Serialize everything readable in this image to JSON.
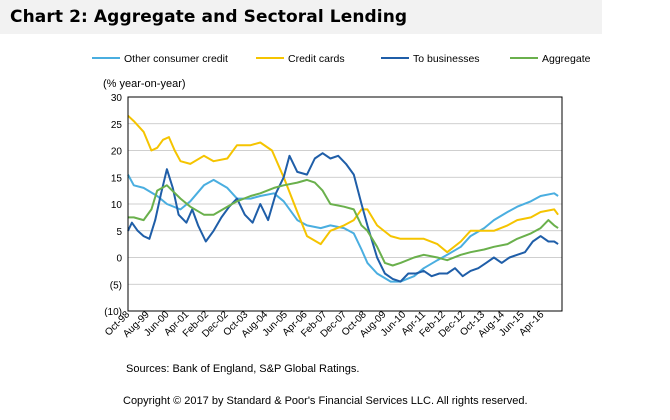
{
  "header": {
    "title": "Chart 2: Aggregate and Sectoral Lending"
  },
  "chart_data": {
    "type": "line",
    "title": "Chart 2: Aggregate and Sectoral Lending",
    "ylabel": "(% year-on-year)",
    "xlabel": "",
    "ylim": [
      -10,
      30
    ],
    "ytick_values": [
      -10,
      -5,
      0,
      5,
      10,
      15,
      20,
      25,
      30
    ],
    "ytick_labels": [
      "(10)",
      "(5)",
      "0",
      "5",
      "10",
      "15",
      "20",
      "25",
      "30"
    ],
    "xlim": [
      "1998-10",
      "2017-05"
    ],
    "xticks": [
      "Oct-98",
      "Aug-99",
      "Jun-00",
      "Apr-01",
      "Feb-02",
      "Dec-02",
      "Oct-03",
      "Aug-04",
      "Jun-05",
      "Apr-06",
      "Feb-07",
      "Dec-07",
      "Oct-08",
      "Aug-09",
      "Jun-10",
      "Apr-11",
      "Feb-12",
      "Dec-12",
      "Oct-13",
      "Aug-14",
      "Jun-15",
      "Apr-16"
    ],
    "grid": "horizontal",
    "legend_position": "top",
    "series": [
      {
        "name": "Other consumer credit",
        "color": "#4aaee0",
        "points": [
          [
            "1998-10",
            15.5
          ],
          [
            "1999-01",
            13.5
          ],
          [
            "1999-06",
            13.0
          ],
          [
            "2000-01",
            11.5
          ],
          [
            "2000-06",
            10.0
          ],
          [
            "2001-01",
            9.0
          ],
          [
            "2001-06",
            10.5
          ],
          [
            "2002-01",
            13.5
          ],
          [
            "2002-06",
            14.5
          ],
          [
            "2003-01",
            13.0
          ],
          [
            "2003-06",
            11.0
          ],
          [
            "2004-01",
            11.0
          ],
          [
            "2004-06",
            11.5
          ],
          [
            "2005-01",
            12.0
          ],
          [
            "2005-06",
            10.5
          ],
          [
            "2006-01",
            7.0
          ],
          [
            "2006-06",
            6.0
          ],
          [
            "2007-01",
            5.5
          ],
          [
            "2007-06",
            6.0
          ],
          [
            "2008-01",
            5.5
          ],
          [
            "2008-06",
            4.5
          ],
          [
            "2008-10",
            1.5
          ],
          [
            "2009-01",
            -1.0
          ],
          [
            "2009-06",
            -3.0
          ],
          [
            "2010-01",
            -4.5
          ],
          [
            "2010-06",
            -4.5
          ],
          [
            "2011-01",
            -3.5
          ],
          [
            "2011-06",
            -2.0
          ],
          [
            "2012-01",
            -0.5
          ],
          [
            "2012-06",
            0.5
          ],
          [
            "2013-01",
            2.0
          ],
          [
            "2013-06",
            4.0
          ],
          [
            "2014-01",
            5.5
          ],
          [
            "2014-06",
            7.0
          ],
          [
            "2015-01",
            8.5
          ],
          [
            "2015-06",
            9.5
          ],
          [
            "2016-01",
            10.5
          ],
          [
            "2016-06",
            11.5
          ],
          [
            "2017-01",
            12.0
          ],
          [
            "2017-03",
            11.5
          ]
        ]
      },
      {
        "name": "Credit cards",
        "color": "#f5c400",
        "points": [
          [
            "1998-10",
            26.5
          ],
          [
            "1999-01",
            25.5
          ],
          [
            "1999-06",
            23.5
          ],
          [
            "1999-10",
            20.0
          ],
          [
            "2000-01",
            20.5
          ],
          [
            "2000-04",
            22.0
          ],
          [
            "2000-07",
            22.5
          ],
          [
            "2000-10",
            20.0
          ],
          [
            "2001-01",
            18.0
          ],
          [
            "2001-06",
            17.5
          ],
          [
            "2002-01",
            19.0
          ],
          [
            "2002-06",
            18.0
          ],
          [
            "2003-01",
            18.5
          ],
          [
            "2003-06",
            21.0
          ],
          [
            "2004-01",
            21.0
          ],
          [
            "2004-06",
            21.5
          ],
          [
            "2004-12",
            20.0
          ],
          [
            "2005-06",
            15.0
          ],
          [
            "2006-01",
            8.5
          ],
          [
            "2006-06",
            4.0
          ],
          [
            "2007-01",
            2.5
          ],
          [
            "2007-06",
            5.0
          ],
          [
            "2008-01",
            6.0
          ],
          [
            "2008-06",
            7.0
          ],
          [
            "2008-10",
            9.0
          ],
          [
            "2009-01",
            9.0
          ],
          [
            "2009-06",
            6.0
          ],
          [
            "2010-01",
            4.0
          ],
          [
            "2010-06",
            3.5
          ],
          [
            "2011-01",
            3.5
          ],
          [
            "2011-06",
            3.5
          ],
          [
            "2012-01",
            2.5
          ],
          [
            "2012-06",
            1.0
          ],
          [
            "2013-01",
            3.0
          ],
          [
            "2013-06",
            5.0
          ],
          [
            "2014-01",
            5.0
          ],
          [
            "2014-06",
            5.0
          ],
          [
            "2015-01",
            6.0
          ],
          [
            "2015-06",
            7.0
          ],
          [
            "2016-01",
            7.5
          ],
          [
            "2016-06",
            8.5
          ],
          [
            "2017-01",
            9.0
          ],
          [
            "2017-03",
            8.0
          ]
        ]
      },
      {
        "name": "To businesses",
        "color": "#1f5ea8",
        "points": [
          [
            "1998-10",
            5.0
          ],
          [
            "1998-12",
            6.5
          ],
          [
            "1999-03",
            5.0
          ],
          [
            "1999-06",
            4.0
          ],
          [
            "1999-09",
            3.5
          ],
          [
            "1999-12",
            7.0
          ],
          [
            "2000-03",
            12.0
          ],
          [
            "2000-06",
            16.5
          ],
          [
            "2000-09",
            13.0
          ],
          [
            "2000-12",
            8.0
          ],
          [
            "2001-04",
            6.5
          ],
          [
            "2001-07",
            9.0
          ],
          [
            "2001-10",
            6.0
          ],
          [
            "2002-02",
            3.0
          ],
          [
            "2002-06",
            5.0
          ],
          [
            "2002-10",
            7.5
          ],
          [
            "2003-02",
            9.5
          ],
          [
            "2003-06",
            11.0
          ],
          [
            "2003-10",
            8.0
          ],
          [
            "2004-02",
            6.5
          ],
          [
            "2004-06",
            10.0
          ],
          [
            "2004-10",
            7.0
          ],
          [
            "2005-02",
            12.0
          ],
          [
            "2005-06",
            15.0
          ],
          [
            "2005-09",
            19.0
          ],
          [
            "2006-01",
            16.0
          ],
          [
            "2006-06",
            15.5
          ],
          [
            "2006-10",
            18.5
          ],
          [
            "2007-02",
            19.5
          ],
          [
            "2007-06",
            18.5
          ],
          [
            "2007-10",
            19.0
          ],
          [
            "2008-02",
            17.5
          ],
          [
            "2008-06",
            15.5
          ],
          [
            "2008-10",
            10.0
          ],
          [
            "2009-01",
            6.0
          ],
          [
            "2009-06",
            0.0
          ],
          [
            "2009-10",
            -3.0
          ],
          [
            "2010-02",
            -4.0
          ],
          [
            "2010-06",
            -4.5
          ],
          [
            "2010-10",
            -3.0
          ],
          [
            "2011-02",
            -3.0
          ],
          [
            "2011-06",
            -2.5
          ],
          [
            "2011-10",
            -3.5
          ],
          [
            "2012-02",
            -3.0
          ],
          [
            "2012-06",
            -3.0
          ],
          [
            "2012-10",
            -2.0
          ],
          [
            "2013-02",
            -3.5
          ],
          [
            "2013-06",
            -2.5
          ],
          [
            "2013-10",
            -2.0
          ],
          [
            "2014-02",
            -1.0
          ],
          [
            "2014-06",
            0.0
          ],
          [
            "2014-10",
            -1.0
          ],
          [
            "2015-02",
            0.0
          ],
          [
            "2015-06",
            0.5
          ],
          [
            "2015-10",
            1.0
          ],
          [
            "2016-02",
            3.0
          ],
          [
            "2016-06",
            4.0
          ],
          [
            "2016-10",
            3.0
          ],
          [
            "2017-01",
            3.0
          ],
          [
            "2017-03",
            2.5
          ]
        ]
      },
      {
        "name": "Aggregate",
        "color": "#6ab04c",
        "points": [
          [
            "1998-10",
            7.5
          ],
          [
            "1999-01",
            7.5
          ],
          [
            "1999-06",
            7.0
          ],
          [
            "1999-10",
            9.0
          ],
          [
            "2000-01",
            12.5
          ],
          [
            "2000-06",
            13.5
          ],
          [
            "2001-01",
            11.0
          ],
          [
            "2001-06",
            9.5
          ],
          [
            "2002-01",
            8.0
          ],
          [
            "2002-06",
            8.0
          ],
          [
            "2003-01",
            9.5
          ],
          [
            "2003-06",
            10.5
          ],
          [
            "2004-01",
            11.5
          ],
          [
            "2004-06",
            12.0
          ],
          [
            "2005-01",
            13.0
          ],
          [
            "2005-06",
            13.5
          ],
          [
            "2006-01",
            14.0
          ],
          [
            "2006-06",
            14.5
          ],
          [
            "2006-10",
            14.0
          ],
          [
            "2007-02",
            12.5
          ],
          [
            "2007-06",
            10.0
          ],
          [
            "2008-01",
            9.5
          ],
          [
            "2008-06",
            9.0
          ],
          [
            "2008-10",
            6.0
          ],
          [
            "2009-01",
            5.0
          ],
          [
            "2009-06",
            2.0
          ],
          [
            "2009-10",
            -1.0
          ],
          [
            "2010-02",
            -1.5
          ],
          [
            "2010-06",
            -1.0
          ],
          [
            "2011-01",
            0.0
          ],
          [
            "2011-06",
            0.5
          ],
          [
            "2012-01",
            0.0
          ],
          [
            "2012-06",
            -0.5
          ],
          [
            "2013-01",
            0.5
          ],
          [
            "2013-06",
            1.0
          ],
          [
            "2014-01",
            1.5
          ],
          [
            "2014-06",
            2.0
          ],
          [
            "2015-01",
            2.5
          ],
          [
            "2015-06",
            3.5
          ],
          [
            "2016-01",
            4.5
          ],
          [
            "2016-06",
            5.5
          ],
          [
            "2016-10",
            7.0
          ],
          [
            "2017-01",
            6.0
          ],
          [
            "2017-03",
            5.5
          ]
        ]
      }
    ]
  },
  "footer": {
    "source": "Sources: Bank of England,  S&P  Global Ratings.",
    "copyright": "Copyright © 2017 by Standard & Poor's Financial Services LLC. All rights reserved."
  }
}
